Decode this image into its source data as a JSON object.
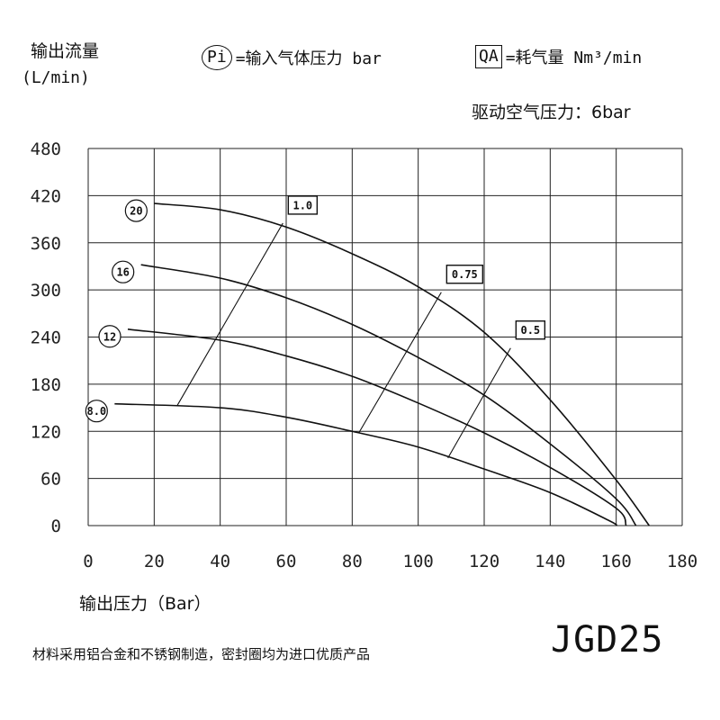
{
  "header": {
    "ylabel": "输出流量",
    "yunit": "(L/min)",
    "legend_pi_symbol": "Pi",
    "legend_pi_text": "=输入气体压力 bar",
    "legend_qa_symbol": "QA",
    "legend_qa_text": "=耗气量 Nm³/min",
    "drive_pressure": "驱动空气压力：6bar"
  },
  "footer": {
    "xlabel": "输出压力（Bar）",
    "note": "材料采用铝合金和不锈钢制造，密封圈均为进口优质产品",
    "model": "JGD25"
  },
  "chart_data": {
    "type": "line",
    "xlim": [
      0,
      180
    ],
    "ylim": [
      0,
      480
    ],
    "xticks": [
      "0",
      "20",
      "40",
      "60",
      "80",
      "100",
      "120",
      "140",
      "160",
      "180"
    ],
    "yticks": [
      "0",
      "60",
      "120",
      "180",
      "240",
      "300",
      "360",
      "420",
      "480"
    ],
    "grid": true,
    "series": [
      {
        "name": "20",
        "points": [
          [
            20,
            410
          ],
          [
            40,
            402
          ],
          [
            60,
            380
          ],
          [
            80,
            346
          ],
          [
            100,
            304
          ],
          [
            120,
            246
          ],
          [
            140,
            160
          ],
          [
            160,
            58
          ],
          [
            170,
            0
          ]
        ]
      },
      {
        "name": "16",
        "points": [
          [
            16,
            332
          ],
          [
            40,
            315
          ],
          [
            60,
            290
          ],
          [
            80,
            256
          ],
          [
            100,
            214
          ],
          [
            120,
            166
          ],
          [
            140,
            104
          ],
          [
            160,
            34
          ],
          [
            166,
            0
          ]
        ]
      },
      {
        "name": "12",
        "points": [
          [
            12,
            250
          ],
          [
            40,
            236
          ],
          [
            60,
            216
          ],
          [
            80,
            190
          ],
          [
            100,
            156
          ],
          [
            120,
            118
          ],
          [
            140,
            74
          ],
          [
            160,
            22
          ],
          [
            163,
            0
          ]
        ]
      },
      {
        "name": "8.0",
        "points": [
          [
            8,
            155
          ],
          [
            40,
            150
          ],
          [
            60,
            138
          ],
          [
            80,
            120
          ],
          [
            100,
            100
          ],
          [
            120,
            72
          ],
          [
            140,
            42
          ],
          [
            158,
            6
          ],
          [
            160,
            0
          ]
        ]
      }
    ],
    "consumption_lines": [
      {
        "name": "1.0",
        "points": [
          [
            27,
            153
          ],
          [
            59,
            385
          ]
        ]
      },
      {
        "name": "0.75",
        "points": [
          [
            82,
            118
          ],
          [
            107,
            297
          ]
        ]
      },
      {
        "name": "0.5",
        "points": [
          [
            109,
            86
          ],
          [
            128,
            226
          ]
        ]
      }
    ]
  }
}
